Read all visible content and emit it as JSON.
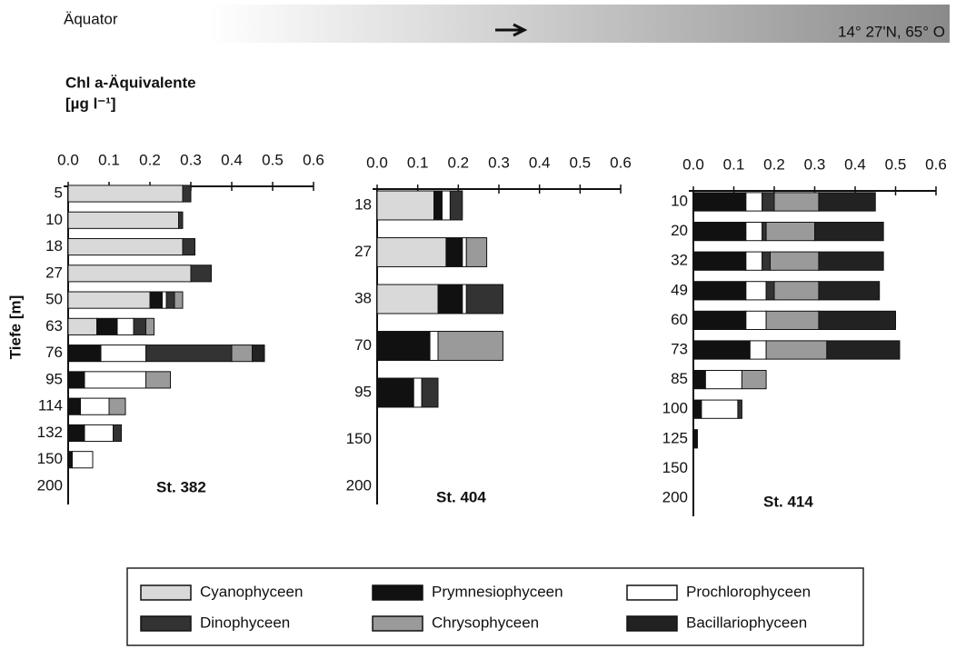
{
  "header": {
    "left": "Äquator",
    "right": "14° 27'N, 65° O"
  },
  "x_axis_label": [
    "Chl a-Äquivalente",
    "[µg l⁻¹]"
  ],
  "y_axis_label": "Tiefe [m]",
  "legend": [
    {
      "name": "Cyanophyceen",
      "color": "#d9d9d9"
    },
    {
      "name": "Prymnesiophyceen",
      "color": "#111111"
    },
    {
      "name": "Prochlorophyceen",
      "color": "#ffffff"
    },
    {
      "name": "Dinophyceen",
      "color": "#333333"
    },
    {
      "name": "Chrysophyceen",
      "color": "#9a9a9a"
    },
    {
      "name": "Bacillariophyceen",
      "color": "#222222"
    }
  ],
  "chart_data": [
    {
      "type": "bar",
      "orientation": "horizontal",
      "stacked": true,
      "title": "St. 382",
      "categories": [
        "5",
        "10",
        "18",
        "27",
        "50",
        "63",
        "76",
        "95",
        "114",
        "132",
        "150",
        "200"
      ],
      "series": [
        {
          "values": [
            0.28,
            0.27,
            0.28,
            0.3,
            0.2,
            0.07,
            0,
            0,
            0,
            0,
            0,
            null
          ]
        },
        {
          "values": [
            0,
            0,
            0,
            0,
            0.03,
            0.05,
            0.08,
            0.04,
            0.03,
            0.04,
            0.01,
            null
          ]
        },
        {
          "values": [
            0,
            0,
            0,
            0,
            0.01,
            0.04,
            0.11,
            0.15,
            0.07,
            0.07,
            0.05,
            null
          ]
        },
        {
          "values": [
            0.02,
            0.01,
            0.03,
            0.05,
            0.02,
            0.03,
            0.21,
            0,
            0,
            0.02,
            0,
            null
          ]
        },
        {
          "values": [
            0,
            0,
            0,
            0,
            0.02,
            0.02,
            0.05,
            0.06,
            0.04,
            0,
            0,
            null
          ]
        },
        {
          "values": [
            0,
            0,
            0,
            0,
            0,
            0,
            0.03,
            0,
            0,
            0,
            0,
            null
          ]
        }
      ],
      "xlim": [
        0,
        0.6
      ],
      "xticks": [
        {
          "value": 0,
          "label": "0.0"
        },
        0.1,
        0.2,
        0.3,
        0.4,
        0.5,
        0.6
      ]
    },
    {
      "type": "bar",
      "orientation": "horizontal",
      "stacked": true,
      "title": "St. 404",
      "categories": [
        "18",
        "27",
        "38",
        "70",
        "95",
        "150",
        "200"
      ],
      "series": [
        {
          "values": [
            0.14,
            0.17,
            0.15,
            0,
            0,
            null,
            null
          ]
        },
        {
          "values": [
            0.02,
            0.04,
            0.06,
            0.13,
            0.09,
            null,
            null
          ]
        },
        {
          "values": [
            0.02,
            0.01,
            0.01,
            0.02,
            0.02,
            null,
            null
          ]
        },
        {
          "values": [
            0.03,
            0,
            0.09,
            0,
            0.04,
            null,
            null
          ]
        },
        {
          "values": [
            0,
            0.05,
            0,
            0.16,
            0,
            null,
            null
          ]
        },
        {
          "values": [
            0,
            0,
            0,
            0,
            0,
            null,
            null
          ]
        }
      ],
      "xlim": [
        0,
        0.6
      ],
      "xticks": [
        {
          "value": 0,
          "label": "0.0"
        },
        0.1,
        0.2,
        0.3,
        0.4,
        0.5,
        0.6
      ]
    },
    {
      "type": "bar",
      "orientation": "horizontal",
      "stacked": true,
      "title": "St. 414",
      "categories": [
        "10",
        "20",
        "32",
        "49",
        "60",
        "73",
        "85",
        "100",
        "125",
        "150",
        "200"
      ],
      "series": [
        {
          "values": [
            0,
            0,
            0,
            0,
            0,
            0,
            0,
            0,
            0,
            null,
            null
          ]
        },
        {
          "values": [
            0.13,
            0.13,
            0.13,
            0.13,
            0.13,
            0.14,
            0.03,
            0.02,
            0.01,
            null,
            null
          ]
        },
        {
          "values": [
            0.04,
            0.04,
            0.04,
            0.05,
            0.05,
            0.04,
            0.09,
            0.09,
            0,
            null,
            null
          ]
        },
        {
          "values": [
            0.03,
            0.01,
            0.02,
            0.02,
            0,
            0,
            0,
            0.01,
            0,
            null,
            null
          ]
        },
        {
          "values": [
            0.11,
            0.12,
            0.12,
            0.11,
            0.13,
            0.15,
            0.06,
            0,
            0,
            null,
            null
          ]
        },
        {
          "values": [
            0.14,
            0.17,
            0.16,
            0.15,
            0.19,
            0.18,
            0,
            0,
            0,
            null,
            null
          ]
        }
      ],
      "xlim": [
        0,
        0.6
      ],
      "xticks": [
        {
          "value": 0,
          "label": "0.0"
        },
        0.1,
        0.2,
        0.3,
        0.4,
        0.5,
        0.6
      ]
    }
  ]
}
